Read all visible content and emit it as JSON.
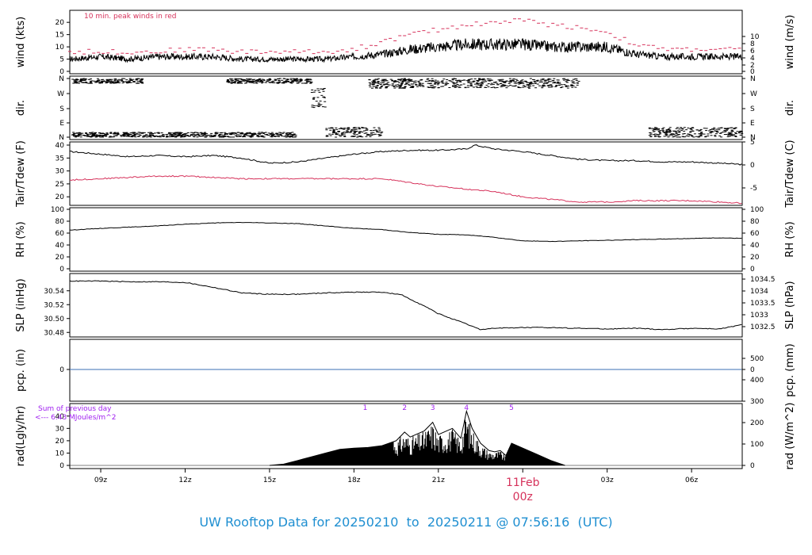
{
  "footer": {
    "title": "UW Rooftop Data for 20250210  to  20250211 @ 07:56:16  (UTC)"
  },
  "colors": {
    "black": "#000000",
    "red": "#d6325b",
    "blue": "#3b6fb6",
    "purple": "#a020f0",
    "title": "#1f8fd1"
  },
  "chart_data": [
    {
      "type": "line",
      "panel": "wind",
      "ylabel_left": "wind (kts)",
      "ylabel_right": "wind (m/s)",
      "yticks_left": [
        "0",
        "5",
        "10",
        "15",
        "20"
      ],
      "yticks_right": [
        "0",
        "2",
        "4",
        "6",
        "8",
        "10"
      ],
      "ylim": [
        0,
        22
      ],
      "annotation": "10 min. peak winds in red",
      "series": [
        {
          "name": "wind speed",
          "color": "#000000",
          "x": [
            7.9,
            9,
            10,
            11,
            12,
            13,
            14,
            15,
            16,
            17,
            18,
            19,
            20,
            21,
            22,
            23,
            24,
            25,
            26,
            27,
            28,
            29,
            30,
            31,
            31.8
          ],
          "y": [
            5,
            6,
            5,
            6,
            6,
            6,
            5,
            5,
            5,
            5,
            6,
            7,
            9,
            10,
            11,
            11,
            11,
            10,
            10,
            10,
            7,
            6,
            6,
            6,
            6
          ]
        },
        {
          "name": "10 min. peak winds",
          "color": "#d6325b",
          "x": [
            7.9,
            9,
            10,
            11,
            12,
            13,
            14,
            15,
            16,
            17,
            18,
            19,
            20,
            21,
            22,
            23,
            24,
            25,
            26,
            27,
            28,
            29,
            30,
            31,
            31.8
          ],
          "y": [
            8,
            8,
            8,
            8,
            9,
            9,
            8,
            8,
            8,
            8,
            9,
            12,
            15,
            17,
            19,
            20,
            21,
            19,
            18,
            16,
            11,
            9,
            9,
            9,
            9
          ]
        }
      ]
    },
    {
      "type": "scatter",
      "panel": "dir",
      "ylabel_left": "dir.",
      "ylabel_right": "dir.",
      "yticks": [
        "N",
        "E",
        "S",
        "W",
        "N"
      ],
      "ylim": [
        0,
        360
      ],
      "series": [
        {
          "name": "direction",
          "color": "#000000",
          "clusters": [
            {
              "x": [
                8.0,
                16.0
              ],
              "y": [
                0,
                30
              ]
            },
            {
              "x": [
                8.0,
                10.5
              ],
              "y": [
                330,
                360
              ]
            },
            {
              "x": [
                13.5,
                16.5
              ],
              "y": [
                330,
                360
              ]
            },
            {
              "x": [
                16.5,
                17.0
              ],
              "y": [
                180,
                300
              ]
            },
            {
              "x": [
                17.0,
                19.0
              ],
              "y": [
                0,
                60
              ]
            },
            {
              "x": [
                18.5,
                26.0
              ],
              "y": [
                300,
                360
              ]
            },
            {
              "x": [
                28.5,
                31.8
              ],
              "y": [
                0,
                60
              ]
            }
          ]
        }
      ]
    },
    {
      "type": "line",
      "panel": "temp",
      "ylabel_left": "Tair/Tdew (F)",
      "ylabel_right": "Tair/Tdew (C)",
      "yticks_left": [
        "20",
        "25",
        "30",
        "35",
        "40"
      ],
      "yticks_right": [
        "-5",
        "0",
        "5"
      ],
      "ylim": [
        17,
        40
      ],
      "series": [
        {
          "name": "Tair",
          "color": "#000000",
          "x": [
            7.9,
            9,
            10,
            11,
            12,
            13,
            14,
            15,
            16,
            17,
            18,
            19,
            20,
            21,
            22,
            22.3,
            23,
            24,
            25,
            26,
            27,
            28,
            29,
            30,
            31,
            31.8
          ],
          "y": [
            37.5,
            36.5,
            35.5,
            36,
            35.5,
            36,
            35,
            33,
            33.5,
            35,
            36.5,
            37.5,
            38,
            38,
            38.5,
            40,
            38.5,
            37.5,
            36,
            34.5,
            34,
            34,
            33.5,
            33.5,
            33,
            32.5
          ]
        },
        {
          "name": "Tdew",
          "color": "#d6325b",
          "x": [
            7.9,
            9,
            10,
            11,
            12,
            13,
            14,
            15,
            16,
            17,
            18,
            19,
            20,
            21,
            22,
            23,
            24,
            25,
            26,
            27,
            28,
            29,
            30,
            31,
            31.8
          ],
          "y": [
            26.5,
            27,
            27.5,
            28,
            28,
            27.5,
            27,
            27,
            27,
            27,
            27,
            27,
            25.5,
            24,
            23,
            22,
            20,
            19,
            18,
            18,
            18.5,
            18.5,
            18.5,
            18,
            17.5
          ]
        }
      ]
    },
    {
      "type": "line",
      "panel": "rh",
      "ylabel_left": "RH (%)",
      "ylabel_right": "RH (%)",
      "yticks_left": [
        "0",
        "20",
        "40",
        "60",
        "80",
        "100"
      ],
      "yticks_right": [
        "0",
        "20",
        "40",
        "60",
        "80",
        "100"
      ],
      "ylim": [
        0,
        100
      ],
      "series": [
        {
          "name": "RH",
          "color": "#000000",
          "x": [
            7.9,
            9,
            10,
            11,
            12,
            13,
            14,
            15,
            16,
            17,
            18,
            19,
            20,
            21,
            22,
            23,
            24,
            25,
            26,
            27,
            28,
            29,
            30,
            31,
            31.8
          ],
          "y": [
            65,
            68,
            70,
            72,
            75,
            77,
            78,
            77,
            76,
            72,
            68,
            66,
            61,
            58,
            57,
            53,
            47,
            46,
            47,
            48,
            49,
            50,
            51,
            52,
            51
          ]
        }
      ]
    },
    {
      "type": "line",
      "panel": "slp",
      "ylabel_left": "SLP (inHg)",
      "ylabel_right": "SLP (hPa)",
      "yticks_left": [
        "30.48",
        "30.50",
        "30.52",
        "30.54"
      ],
      "yticks_right": [
        "1032.5",
        "1033",
        "1033.5",
        "1034",
        "1034.5"
      ],
      "ylim": [
        30.478,
        30.558
      ],
      "series": [
        {
          "name": "SLP",
          "color": "#000000",
          "x": [
            7.9,
            9,
            10,
            11,
            12,
            13,
            14,
            15,
            16,
            17,
            18,
            19,
            19.7,
            20.5,
            21,
            22,
            22.5,
            23,
            24,
            25,
            26,
            27,
            28,
            29,
            30,
            31,
            31.8
          ],
          "y": [
            30.554,
            30.554,
            30.553,
            30.553,
            30.552,
            30.545,
            30.537,
            30.535,
            30.535,
            30.537,
            30.538,
            30.538,
            30.534,
            30.518,
            30.507,
            30.492,
            30.484,
            30.486,
            30.487,
            30.487,
            30.486,
            30.485,
            30.486,
            30.484,
            30.486,
            30.485,
            30.491
          ]
        }
      ]
    },
    {
      "type": "line",
      "panel": "pcp",
      "ylabel_left": "pcp. (in)",
      "ylabel_right": "pcp. (mm)",
      "yticks_left": [
        "0"
      ],
      "yticks_right": [
        "0"
      ],
      "ylim": [
        -1,
        1
      ],
      "series": [
        {
          "name": "precipitation",
          "color": "#3b6fb6",
          "x": [
            7.9,
            31.8
          ],
          "y": [
            0,
            0
          ]
        }
      ]
    },
    {
      "type": "area",
      "panel": "rad",
      "ylabel_left": "rad(Lgly/hr)",
      "ylabel_right": "rad (W/m^2)",
      "yticks_left": [
        "0",
        "10",
        "20",
        "30",
        "40"
      ],
      "yticks_right": [
        "0",
        "100",
        "200",
        "300",
        "400",
        "500"
      ],
      "ylim": [
        0,
        45
      ],
      "annotation_lines": [
        "Sum of previous day",
        "<--- 6.43 MJoules/m^2"
      ],
      "markers": [
        "1",
        "2",
        "3",
        "4",
        "5"
      ],
      "marker_x": [
        18.4,
        19.8,
        20.8,
        22.0,
        23.6
      ],
      "series": [
        {
          "name": "radiation",
          "color": "#000000",
          "x": [
            15.0,
            15.5,
            16.0,
            16.5,
            17.0,
            17.5,
            18.0,
            18.5,
            19.0,
            19.5,
            19.8,
            20.0,
            20.5,
            20.8,
            21.0,
            21.5,
            21.8,
            22.0,
            22.2,
            22.5,
            22.8,
            23.0,
            23.2,
            23.4,
            23.6,
            24.0,
            24.5,
            25.0,
            25.5
          ],
          "y": [
            0,
            1,
            4,
            7,
            10,
            13,
            14,
            14.5,
            16,
            20,
            27,
            23,
            28,
            35,
            25,
            30,
            22,
            44,
            30,
            18,
            12,
            11,
            12,
            8,
            18,
            14,
            9,
            4,
            0
          ]
        }
      ]
    }
  ],
  "x_axis": {
    "ticks": [
      "09z",
      "12z",
      "15z",
      "18z",
      "21z",
      "00z",
      "03z",
      "06z"
    ],
    "tick_hours": [
      9,
      12,
      15,
      18,
      21,
      24,
      27,
      30
    ],
    "range_hours": [
      7.9,
      31.8
    ],
    "date_label": "11Feb",
    "date_hour_label": "00z"
  }
}
